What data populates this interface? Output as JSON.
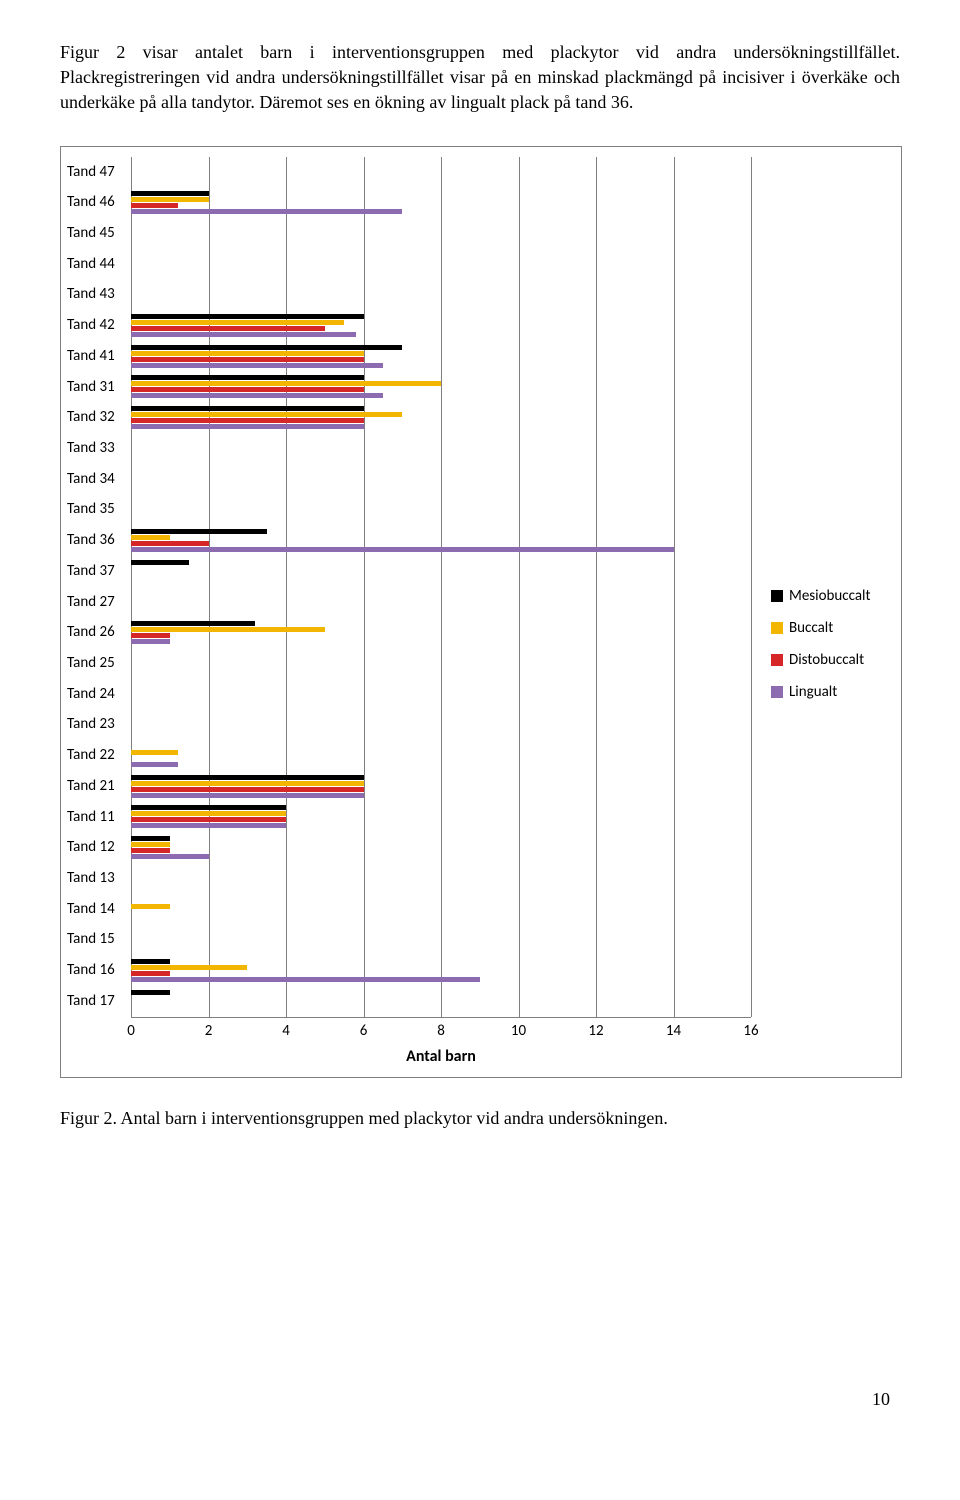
{
  "paragraph": "Figur 2 visar antalet barn i interventionsgruppen med plackytor vid andra undersökningstillfället. Plackregistreringen vid andra undersökningstillfället visar på en minskad plackmängd på incisiver i överkäke och underkäke på alla tandytor. Däremot ses en ökning av lingualt plack på tand 36.",
  "caption": "Figur 2. Antal barn i interventionsgruppen med plackytor vid andra undersökningen.",
  "page_number": "10",
  "chart": {
    "type": "bar-horizontal-grouped",
    "x_title": "Antal barn",
    "x_min": 0,
    "x_max": 16,
    "x_tick_step": 2,
    "series": [
      {
        "key": "m",
        "label": "Mesiobuccalt",
        "color": "#000000"
      },
      {
        "key": "b",
        "label": "Buccalt",
        "color": "#f2b600"
      },
      {
        "key": "d",
        "label": "Distobuccalt",
        "color": "#d62728"
      },
      {
        "key": "l",
        "label": "Lingualt",
        "color": "#8c6bb1"
      }
    ],
    "categories": [
      {
        "label": "Tand 47",
        "m": 0,
        "b": 0,
        "d": 0,
        "l": 0
      },
      {
        "label": "Tand 46",
        "m": 2,
        "b": 2,
        "d": 1.2,
        "l": 7
      },
      {
        "label": "Tand 45",
        "m": 0,
        "b": 0,
        "d": 0,
        "l": 0
      },
      {
        "label": "Tand 44",
        "m": 0,
        "b": 0,
        "d": 0,
        "l": 0
      },
      {
        "label": "Tand 43",
        "m": 0,
        "b": 0,
        "d": 0,
        "l": 0
      },
      {
        "label": "Tand 42",
        "m": 6,
        "b": 5.5,
        "d": 5,
        "l": 5.8
      },
      {
        "label": "Tand 41",
        "m": 7,
        "b": 6,
        "d": 6,
        "l": 6.5
      },
      {
        "label": "Tand 31",
        "m": 6,
        "b": 8,
        "d": 6,
        "l": 6.5
      },
      {
        "label": "Tand 32",
        "m": 6,
        "b": 7,
        "d": 6,
        "l": 6
      },
      {
        "label": "Tand 33",
        "m": 0,
        "b": 0,
        "d": 0,
        "l": 0
      },
      {
        "label": "Tand 34",
        "m": 0,
        "b": 0,
        "d": 0,
        "l": 0
      },
      {
        "label": "Tand 35",
        "m": 0,
        "b": 0,
        "d": 0,
        "l": 0
      },
      {
        "label": "Tand 36",
        "m": 3.5,
        "b": 1,
        "d": 2,
        "l": 14
      },
      {
        "label": "Tand 37",
        "m": 1.5,
        "b": 0,
        "d": 0,
        "l": 0
      },
      {
        "label": "Tand 27",
        "m": 0,
        "b": 0,
        "d": 0,
        "l": 0
      },
      {
        "label": "Tand 26",
        "m": 3.2,
        "b": 5,
        "d": 1,
        "l": 1
      },
      {
        "label": "Tand 25",
        "m": 0,
        "b": 0,
        "d": 0,
        "l": 0
      },
      {
        "label": "Tand 24",
        "m": 0,
        "b": 0,
        "d": 0,
        "l": 0
      },
      {
        "label": "Tand 23",
        "m": 0,
        "b": 0,
        "d": 0,
        "l": 0
      },
      {
        "label": "Tand 22",
        "m": 0,
        "b": 1.2,
        "d": 0,
        "l": 1.2
      },
      {
        "label": "Tand 21",
        "m": 6,
        "b": 6,
        "d": 6,
        "l": 6
      },
      {
        "label": "Tand 11",
        "m": 4,
        "b": 4,
        "d": 4,
        "l": 4
      },
      {
        "label": "Tand 12",
        "m": 1,
        "b": 1,
        "d": 1,
        "l": 2
      },
      {
        "label": "Tand 13",
        "m": 0,
        "b": 0,
        "d": 0,
        "l": 0
      },
      {
        "label": "Tand 14",
        "m": 0,
        "b": 1,
        "d": 0,
        "l": 0
      },
      {
        "label": "Tand 15",
        "m": 0,
        "b": 0,
        "d": 0,
        "l": 0
      },
      {
        "label": "Tand 16",
        "m": 1,
        "b": 3,
        "d": 1,
        "l": 9
      },
      {
        "label": "Tand 17",
        "m": 1,
        "b": 0,
        "d": 0,
        "l": 0
      }
    ],
    "grid_color": "#7f7f7f",
    "background_color": "#ffffff",
    "label_font": "Calibri",
    "label_fontsize": 15
  }
}
